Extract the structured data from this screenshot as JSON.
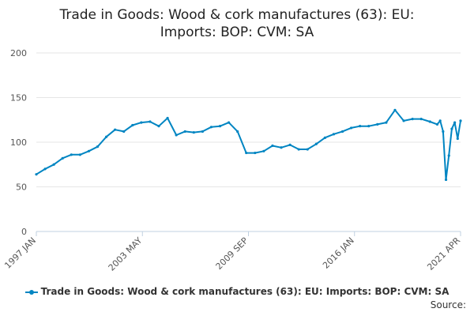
{
  "colors": {
    "series": "#0085c2",
    "grid": "#e6e6e6",
    "axis": "#c0d0e0"
  },
  "legend_label": "Trade in Goods: Wood & cork manufactures (63): EU: Imports: BOP: CVM: SA",
  "source_label": "Source:",
  "chart_data": {
    "type": "line",
    "title_lines": [
      "Trade in Goods: Wood & cork manufactures (63): EU:",
      "Imports: BOP: CVM: SA"
    ],
    "xlabel": "",
    "ylabel": "",
    "ylim": [
      0,
      200
    ],
    "yticks": [
      0,
      50,
      100,
      150,
      200
    ],
    "x_start": "1997-01",
    "x_end": "2021-04",
    "x_tick_labels": [
      "1997 JAN",
      "2003 MAY",
      "2009 SEP",
      "2016 JAN",
      "2021 APR"
    ],
    "grid": true,
    "legend_position": "bottom",
    "series": [
      {
        "name": "Trade in Goods: Wood & cork manufactures (63): EU: Imports: BOP: CVM: SA",
        "x": [
          "1997-01",
          "1997-07",
          "1998-01",
          "1998-07",
          "1999-01",
          "1999-07",
          "2000-01",
          "2000-07",
          "2001-01",
          "2001-07",
          "2002-01",
          "2002-07",
          "2003-01",
          "2003-07",
          "2004-01",
          "2004-07",
          "2005-01",
          "2005-07",
          "2006-01",
          "2006-07",
          "2007-01",
          "2007-07",
          "2008-01",
          "2008-07",
          "2009-01",
          "2009-07",
          "2010-01",
          "2010-07",
          "2011-01",
          "2011-07",
          "2012-01",
          "2012-07",
          "2013-01",
          "2013-07",
          "2014-01",
          "2014-07",
          "2015-01",
          "2015-07",
          "2016-01",
          "2016-07",
          "2017-01",
          "2017-07",
          "2018-01",
          "2018-07",
          "2019-01",
          "2019-07",
          "2019-12",
          "2020-02",
          "2020-04",
          "2020-06",
          "2020-08",
          "2020-10",
          "2020-12",
          "2021-02",
          "2021-04"
        ],
        "values": [
          64,
          70,
          75,
          82,
          86,
          86,
          90,
          95,
          106,
          114,
          112,
          119,
          122,
          123,
          118,
          127,
          108,
          112,
          111,
          112,
          117,
          118,
          122,
          112,
          88,
          88,
          90,
          96,
          94,
          97,
          92,
          92,
          98,
          105,
          109,
          112,
          116,
          118,
          118,
          120,
          122,
          136,
          124,
          126,
          126,
          123,
          120,
          124,
          112,
          58,
          85,
          115,
          122,
          104,
          124
        ]
      }
    ]
  }
}
